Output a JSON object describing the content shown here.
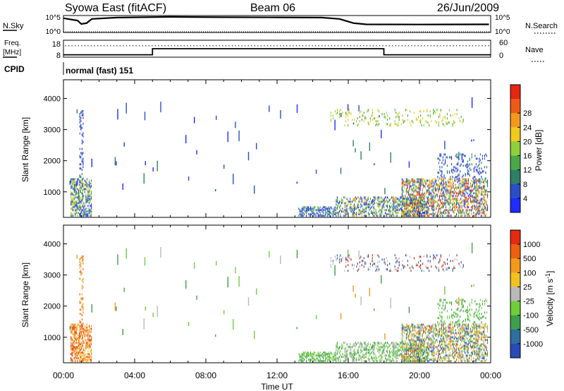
{
  "header": {
    "station": "Syowa East (fitACF)",
    "beam": "Beam 06",
    "date": "26/Jun/2009"
  },
  "panels": {
    "noise": {
      "left_label": "N.Sky",
      "right_label": "N.Search",
      "left_ticks": [
        "10^5",
        "10^0"
      ],
      "right_ticks": [
        "10^5",
        "10^0"
      ],
      "sky_trace": [
        {
          "t": 0.0,
          "v": 0.84
        },
        {
          "t": 0.8,
          "v": 0.7
        },
        {
          "t": 1.0,
          "v": 0.5
        },
        {
          "t": 1.3,
          "v": 0.55
        },
        {
          "t": 1.6,
          "v": 0.8
        },
        {
          "t": 3.0,
          "v": 0.88
        },
        {
          "t": 6.0,
          "v": 0.92
        },
        {
          "t": 9.0,
          "v": 0.9
        },
        {
          "t": 12.0,
          "v": 0.89
        },
        {
          "t": 14.5,
          "v": 0.88
        },
        {
          "t": 15.5,
          "v": 0.8
        },
        {
          "t": 16.3,
          "v": 0.55
        },
        {
          "t": 17.0,
          "v": 0.48
        },
        {
          "t": 20.0,
          "v": 0.47
        },
        {
          "t": 23.9,
          "v": 0.48
        }
      ],
      "search_level": 0.04
    },
    "freq": {
      "left_label_1": "Freq.",
      "left_label_2": "[MHz]",
      "right_label": "Nave",
      "left_ticks": [
        "18",
        "8"
      ],
      "right_ticks": [
        "60",
        "0"
      ],
      "freq_trace": [
        {
          "t": 0.0,
          "v": 9.4
        },
        {
          "t": 5.0,
          "v": 9.4
        },
        {
          "t": 5.0,
          "v": 13.0
        },
        {
          "t": 18.0,
          "v": 13.0
        },
        {
          "t": 18.0,
          "v": 9.4
        },
        {
          "t": 24.0,
          "v": 9.4
        }
      ],
      "nave_level": 42
    },
    "cpid": {
      "label": "CPID",
      "text": "normal (fast) 151"
    }
  },
  "chart_data": [
    {
      "type": "heatmap",
      "name": "power",
      "xlabel": "Time UT",
      "ylabel": "Slant Range [km]",
      "xlim": [
        0,
        24
      ],
      "ylim": [
        180,
        4600
      ],
      "xticks": [
        "00:00",
        "04:00",
        "08:00",
        "12:00",
        "16:00",
        "20:00",
        "00:00"
      ],
      "yticks": [
        1000,
        2000,
        3000,
        4000
      ],
      "colorbar_label": "Power [dB]",
      "colorbar_ticks": [
        "4",
        "8",
        "12",
        "16",
        "20",
        "24",
        "28"
      ],
      "colorbar_colors": [
        "#1f2bff",
        "#2a4ec8",
        "#2f7f68",
        "#4aa84a",
        "#8fcf3b",
        "#f2c91d",
        "#f39a1c",
        "#ee5a16",
        "#e52611"
      ],
      "regions": [
        {
          "t0": 0.4,
          "t1": 1.6,
          "r0": 200,
          "r1": 1400,
          "density": 0.55,
          "levels": [
            0,
            1,
            2,
            3,
            4,
            5
          ]
        },
        {
          "t0": 0.9,
          "t1": 1.1,
          "r0": 1400,
          "r1": 3600,
          "density": 0.25,
          "levels": [
            0,
            1,
            2
          ]
        },
        {
          "t0": 13.2,
          "t1": 15.3,
          "r0": 200,
          "r1": 500,
          "density": 0.5,
          "levels": [
            0,
            1,
            3
          ]
        },
        {
          "t0": 15.3,
          "t1": 20.5,
          "r0": 200,
          "r1": 800,
          "density": 0.45,
          "levels": [
            0,
            1,
            2,
            3,
            4,
            6
          ]
        },
        {
          "t0": 19.0,
          "t1": 23.8,
          "r0": 200,
          "r1": 1400,
          "density": 0.5,
          "levels": [
            0,
            1,
            2,
            3,
            4,
            5,
            6,
            7,
            8
          ]
        },
        {
          "t0": 15.0,
          "t1": 22.5,
          "r0": 3100,
          "r1": 3600,
          "density": 0.12,
          "levels": [
            3,
            4,
            5
          ]
        },
        {
          "t0": 21.0,
          "t1": 23.8,
          "r0": 1400,
          "r1": 2200,
          "density": 0.18,
          "levels": [
            0,
            1,
            2
          ]
        }
      ],
      "sparse_points": 60,
      "sparse_levels": [
        0,
        1,
        2
      ]
    },
    {
      "type": "heatmap",
      "name": "velocity",
      "xlabel": "Time UT",
      "ylabel": "Slant Range [km]",
      "xlim": [
        0,
        24
      ],
      "ylim": [
        180,
        4600
      ],
      "xticks": [
        "00:00",
        "04:00",
        "08:00",
        "12:00",
        "16:00",
        "20:00",
        "00:00"
      ],
      "yticks": [
        1000,
        2000,
        3000,
        4000
      ],
      "colorbar_label": "Velocity [m s-1]",
      "colorbar_unit_base": "Velocity [m s",
      "colorbar_unit_sup": "-1",
      "colorbar_unit_end": "]",
      "colorbar_ticks": [
        "1000",
        "500",
        "100",
        "25",
        "-25",
        "-100",
        "-500",
        "-1000"
      ],
      "colorbar_colors": [
        "#2a4ab8",
        "#2f6fa0",
        "#3e9f4a",
        "#6fcf3a",
        "#b9b9b9",
        "#f2c220",
        "#f39a1c",
        "#ee6010",
        "#e42a10"
      ],
      "regions": [
        {
          "t0": 0.4,
          "t1": 1.6,
          "r0": 200,
          "r1": 1400,
          "density": 0.55,
          "levels": [
            5,
            6,
            7,
            8
          ]
        },
        {
          "t0": 0.9,
          "t1": 1.1,
          "r0": 1400,
          "r1": 3600,
          "density": 0.25,
          "levels": [
            6,
            7
          ]
        },
        {
          "t0": 13.2,
          "t1": 15.3,
          "r0": 200,
          "r1": 500,
          "density": 0.5,
          "levels": [
            2,
            3
          ]
        },
        {
          "t0": 15.3,
          "t1": 20.5,
          "r0": 200,
          "r1": 800,
          "density": 0.45,
          "levels": [
            2,
            3,
            4
          ]
        },
        {
          "t0": 19.0,
          "t1": 23.8,
          "r0": 200,
          "r1": 1400,
          "density": 0.5,
          "levels": [
            2,
            3,
            4,
            5,
            6,
            7,
            1,
            0
          ]
        },
        {
          "t0": 15.0,
          "t1": 22.5,
          "r0": 3100,
          "r1": 3600,
          "density": 0.12,
          "levels": [
            0,
            1,
            4,
            8
          ]
        },
        {
          "t0": 21.0,
          "t1": 23.8,
          "r0": 1400,
          "r1": 2200,
          "density": 0.18,
          "levels": [
            2,
            3
          ]
        }
      ],
      "sparse_points": 60,
      "sparse_levels": [
        2,
        3,
        4,
        6
      ]
    }
  ]
}
